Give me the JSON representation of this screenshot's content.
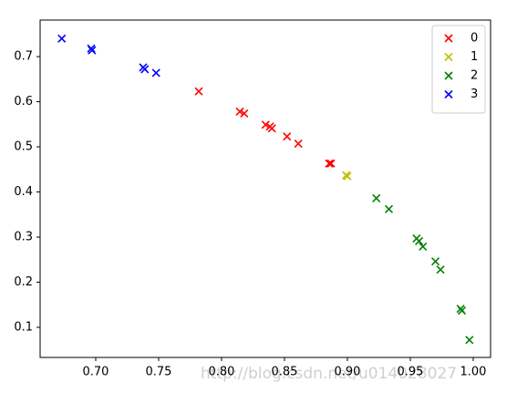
{
  "chart_data": {
    "type": "scatter",
    "xlim": [
      0.6558,
      1.0138
    ],
    "ylim": [
      0.0333,
      0.781
    ],
    "xticks": [
      {
        "value": 0.7,
        "label": "0.70"
      },
      {
        "value": 0.75,
        "label": "0.75"
      },
      {
        "value": 0.8,
        "label": "0.80"
      },
      {
        "value": 0.85,
        "label": "0.85"
      },
      {
        "value": 0.9,
        "label": "0.90"
      },
      {
        "value": 0.95,
        "label": "0.95"
      },
      {
        "value": 1.0,
        "label": "1.00"
      }
    ],
    "yticks": [
      0.1,
      0.2,
      0.3,
      0.4,
      0.5,
      0.6,
      0.7
    ],
    "grid": false,
    "legend": "upper right",
    "marker": "x",
    "series": [
      {
        "name": "0",
        "color": "#ff0000",
        "x": [
          0.7819,
          0.8145,
          0.818,
          0.835,
          0.8384,
          0.84,
          0.852,
          0.861,
          0.8855,
          0.887
        ],
        "values": [
          0.623,
          0.578,
          0.574,
          0.549,
          0.545,
          0.541,
          0.523,
          0.507,
          0.463,
          0.463
        ]
      },
      {
        "name": "1",
        "color": "#bfbf00",
        "x": [
          0.899,
          0.9
        ],
        "values": [
          0.437,
          0.435
        ]
      },
      {
        "name": "2",
        "color": "#008000",
        "x": [
          0.923,
          0.933,
          0.955,
          0.957,
          0.96,
          0.97,
          0.974,
          0.99,
          0.991,
          0.997
        ],
        "values": [
          0.386,
          0.362,
          0.297,
          0.291,
          0.279,
          0.246,
          0.228,
          0.141,
          0.137,
          0.072
        ]
      },
      {
        "name": "3",
        "color": "#0000ff",
        "x": [
          0.673,
          0.6964,
          0.697,
          0.7377,
          0.739,
          0.748
        ],
        "values": [
          0.74,
          0.718,
          0.714,
          0.676,
          0.672,
          0.664
        ]
      }
    ],
    "watermark": "http://blog.csdn.net/u014028027"
  }
}
